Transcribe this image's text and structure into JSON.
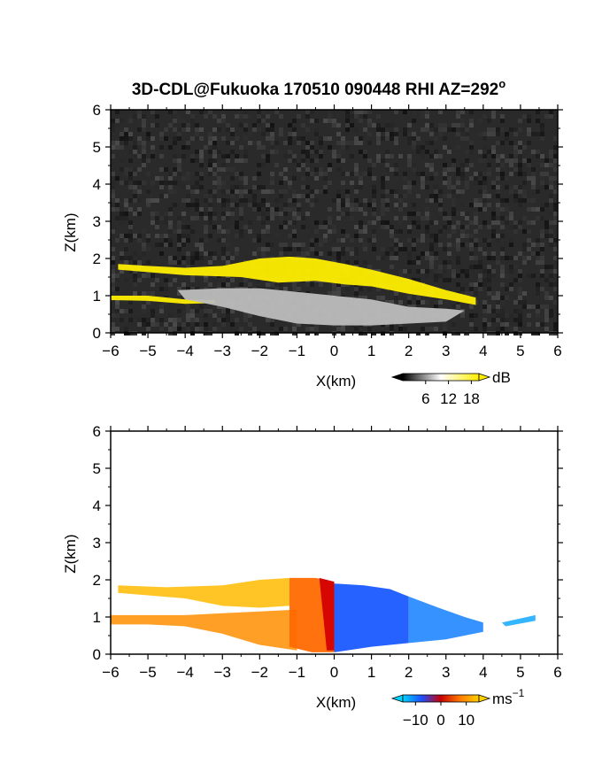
{
  "title": "3D-CDL@Fukuoka 170510 090448 RHI AZ=292",
  "title_superscript": "o",
  "colors": {
    "background_dark": "#2a2a2a",
    "signal_yellow": "#ffee00",
    "signal_gray": "#bdbdbd",
    "wind_positive": "#ff9a1a",
    "wind_negative": "#1a5aff"
  },
  "chart_data": [
    {
      "type": "heatmap",
      "name": "snr-panel",
      "quantity_unit": "dB",
      "xlabel": "X(km)",
      "ylabel": "Z(km)",
      "xlim": [
        -6,
        6
      ],
      "ylim": [
        0,
        6
      ],
      "x_ticks": [
        "−6",
        "−5",
        "−4",
        "−3",
        "−2",
        "−1",
        "0",
        "1",
        "2",
        "3",
        "4",
        "5",
        "6"
      ],
      "y_ticks": [
        "0",
        "1",
        "2",
        "3",
        "4",
        "5",
        "6"
      ],
      "grid": false,
      "colorbar": {
        "ticks": [
          "6",
          "12",
          "18"
        ],
        "tick_values": [
          6,
          12,
          18
        ],
        "range": [
          0,
          20
        ],
        "unit": "dB",
        "colors": [
          "#000000",
          "#ffffff",
          "#ffee00"
        ]
      },
      "layers": [
        {
          "color": "signal_yellow",
          "points": [
            [
              -5.8,
              1.85
            ],
            [
              -5,
              1.8
            ],
            [
              -4,
              1.75
            ],
            [
              -3,
              1.8
            ],
            [
              -2.5,
              1.9
            ],
            [
              -2,
              2.0
            ],
            [
              -1.2,
              2.05
            ],
            [
              -0.5,
              2.0
            ],
            [
              0.3,
              1.85
            ],
            [
              1,
              1.7
            ],
            [
              2,
              1.45
            ],
            [
              3,
              1.15
            ],
            [
              3.8,
              0.95
            ],
            [
              3.8,
              0.75
            ],
            [
              3,
              0.9
            ],
            [
              2,
              1.05
            ],
            [
              1,
              1.25
            ],
            [
              0.3,
              1.3
            ],
            [
              -0.5,
              1.4
            ],
            [
              -1.5,
              1.35
            ],
            [
              -2.5,
              1.5
            ],
            [
              -4,
              1.55
            ],
            [
              -5.8,
              1.7
            ]
          ]
        },
        {
          "color": "signal_yellow",
          "points": [
            [
              -6,
              1.0
            ],
            [
              -5,
              1.0
            ],
            [
              -4,
              0.9
            ],
            [
              -3.2,
              0.88
            ],
            [
              -3.2,
              0.8
            ],
            [
              -4,
              0.78
            ],
            [
              -5,
              0.86
            ],
            [
              -6,
              0.88
            ]
          ]
        },
        {
          "color": "signal_gray",
          "points": [
            [
              -4.2,
              1.15
            ],
            [
              -3,
              1.2
            ],
            [
              -2,
              1.2
            ],
            [
              -1,
              1.1
            ],
            [
              0,
              1.0
            ],
            [
              1,
              0.9
            ],
            [
              2,
              0.7
            ],
            [
              3,
              0.65
            ],
            [
              3.5,
              0.6
            ],
            [
              3,
              0.3
            ],
            [
              2,
              0.25
            ],
            [
              1,
              0.2
            ],
            [
              0,
              0.2
            ],
            [
              -1,
              0.25
            ],
            [
              -2,
              0.45
            ],
            [
              -3,
              0.7
            ],
            [
              -4,
              0.9
            ]
          ]
        }
      ]
    },
    {
      "type": "heatmap",
      "name": "radial-velocity-panel",
      "quantity_unit": "ms−1",
      "xlabel": "X(km)",
      "ylabel": "Z(km)",
      "xlim": [
        -6,
        6
      ],
      "ylim": [
        0,
        6
      ],
      "x_ticks": [
        "−6",
        "−5",
        "−4",
        "−3",
        "−2",
        "−1",
        "0",
        "1",
        "2",
        "3",
        "4",
        "5",
        "6"
      ],
      "y_ticks": [
        "0",
        "1",
        "2",
        "3",
        "4",
        "5",
        "6"
      ],
      "grid": false,
      "colorbar": {
        "ticks": [
          "−10",
          "0",
          "10"
        ],
        "tick_values": [
          -10,
          0,
          10
        ],
        "range": [
          -15,
          15
        ],
        "unit": "ms",
        "unit_superscript": "−1",
        "colors": [
          "#00d4ff",
          "#1f4dff",
          "#c80000",
          "#ff7a00",
          "#ffd000"
        ]
      },
      "layers": [
        {
          "color": "#ffc21a",
          "points": [
            [
              -5.8,
              1.85
            ],
            [
              -4.5,
              1.8
            ],
            [
              -3,
              1.85
            ],
            [
              -2,
              2.0
            ],
            [
              -1.2,
              2.05
            ],
            [
              -1.2,
              1.3
            ],
            [
              -2,
              1.25
            ],
            [
              -3,
              1.3
            ],
            [
              -4,
              1.5
            ],
            [
              -5.8,
              1.65
            ]
          ]
        },
        {
          "color": "#ff9a1a",
          "points": [
            [
              -6,
              1.05
            ],
            [
              -5,
              1.05
            ],
            [
              -4,
              1.05
            ],
            [
              -3,
              1.1
            ],
            [
              -2,
              1.15
            ],
            [
              -1,
              1.2
            ],
            [
              -1,
              0.1
            ],
            [
              -2,
              0.25
            ],
            [
              -3,
              0.55
            ],
            [
              -4,
              0.75
            ],
            [
              -5,
              0.8
            ],
            [
              -6,
              0.8
            ]
          ]
        },
        {
          "color": "#ff6a00",
          "points": [
            [
              -1.2,
              2.05
            ],
            [
              -0.5,
              2.05
            ],
            [
              0,
              1.95
            ],
            [
              0,
              0.05
            ],
            [
              -0.6,
              0.05
            ],
            [
              -1.2,
              0.2
            ]
          ]
        },
        {
          "color": "#d40000",
          "points": [
            [
              -0.4,
              2.05
            ],
            [
              0,
              1.95
            ],
            [
              0,
              0.1
            ],
            [
              -0.2,
              0.1
            ]
          ]
        },
        {
          "color": "#1a5aff",
          "points": [
            [
              0,
              1.9
            ],
            [
              0.8,
              1.85
            ],
            [
              1.5,
              1.75
            ],
            [
              2,
              1.55
            ],
            [
              2,
              0.3
            ],
            [
              1,
              0.2
            ],
            [
              0,
              0.05
            ]
          ]
        },
        {
          "color": "#2a8cff",
          "points": [
            [
              2,
              1.55
            ],
            [
              2.8,
              1.25
            ],
            [
              3.5,
              1.0
            ],
            [
              4,
              0.85
            ],
            [
              4,
              0.6
            ],
            [
              3,
              0.4
            ],
            [
              2,
              0.3
            ]
          ]
        },
        {
          "color": "#2ab0ff",
          "points": [
            [
              4.5,
              0.85
            ],
            [
              5.4,
              1.05
            ],
            [
              5.4,
              0.9
            ],
            [
              4.6,
              0.75
            ]
          ]
        }
      ]
    }
  ]
}
